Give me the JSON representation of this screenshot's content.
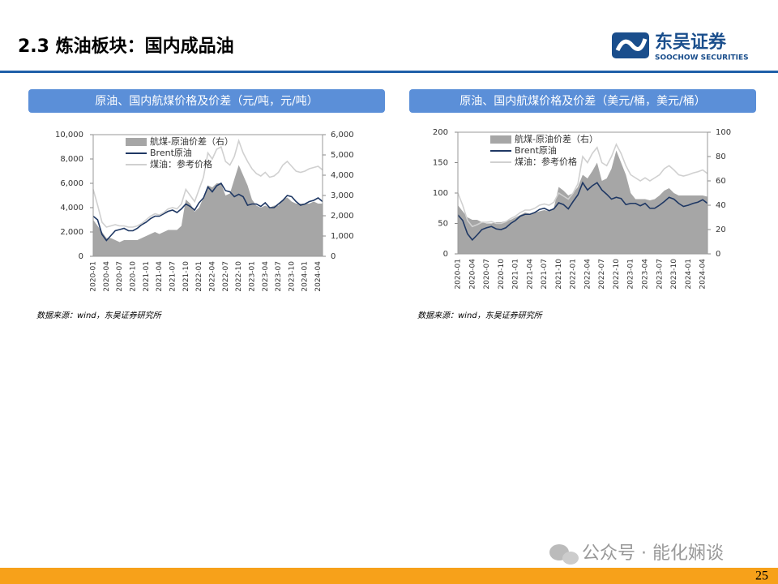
{
  "header": {
    "title": "2.3 炼油板块：国内成品油",
    "logo_name": "东吴证券",
    "logo_subtitle": "SOOCHOW SECURITIES"
  },
  "chart_data": [
    {
      "type": "line",
      "title": "原油、国内航煤价格及价差（元/吨，元/吨）",
      "source": "数据来源：wind，东吴证券研究所",
      "legend": "upper left",
      "categories": [
        "2020-01",
        null,
        null,
        "2020-04",
        null,
        null,
        "2020-07",
        null,
        null,
        "2020-10",
        null,
        null,
        "2021-01",
        null,
        null,
        "2021-04",
        null,
        null,
        "2021-07",
        null,
        null,
        "2021-10",
        null,
        null,
        "2022-01",
        null,
        null,
        "2022-04",
        null,
        null,
        "2022-07",
        null,
        null,
        "2022-10",
        null,
        null,
        "2023-01",
        null,
        null,
        "2023-04",
        null,
        null,
        "2023-07",
        null,
        null,
        "2023-10",
        null,
        null,
        "2024-01",
        null,
        null,
        "2024-04",
        null
      ],
      "series": [
        {
          "name": "航煤-原油价差（右）",
          "color": "#a6a6a6",
          "style": "area",
          "axis": "y2",
          "values": [
            1800,
            1500,
            1200,
            900,
            900,
            800,
            700,
            800,
            800,
            800,
            800,
            900,
            1000,
            1100,
            1200,
            1100,
            1200,
            1300,
            1300,
            1300,
            1500,
            2800,
            2600,
            2200,
            2400,
            2900,
            3500,
            3400,
            3600,
            3600,
            3000,
            3100,
            3800,
            4500,
            4000,
            3500,
            2800,
            2500,
            2400,
            2500,
            2400,
            2500,
            2500,
            2800,
            2900,
            2700,
            2600,
            2600,
            2600,
            2600,
            2700,
            2600,
            2600
          ]
        },
        {
          "name": "Brent原油",
          "color": "#1f3864",
          "values": [
            3300,
            3000,
            1800,
            1300,
            1700,
            2100,
            2200,
            2300,
            2100,
            2100,
            2300,
            2600,
            2800,
            3100,
            3300,
            3300,
            3500,
            3700,
            3800,
            3600,
            3900,
            4300,
            4100,
            3800,
            4400,
            4800,
            5700,
            5300,
            5800,
            6000,
            5400,
            5300,
            4900,
            5100,
            4900,
            4200,
            4300,
            4300,
            4100,
            4400,
            4000,
            4000,
            4300,
            4600,
            5000,
            4900,
            4500,
            4200,
            4300,
            4500,
            4600,
            4800,
            4500
          ]
        },
        {
          "name": "煤油：参考价格",
          "color": "#d0d0d0",
          "values": [
            5500,
            4200,
            2800,
            2400,
            2500,
            2600,
            2500,
            2500,
            2400,
            2400,
            2500,
            2700,
            3000,
            3300,
            3500,
            3400,
            3600,
            3900,
            4000,
            3900,
            4300,
            5500,
            5000,
            4500,
            5500,
            6500,
            8500,
            8000,
            8800,
            9000,
            7800,
            7500,
            8200,
            9500,
            8500,
            7800,
            7200,
            6800,
            6600,
            6900,
            6500,
            6600,
            6900,
            7500,
            7800,
            7400,
            7000,
            6900,
            7000,
            7200,
            7300,
            7400,
            7100
          ]
        }
      ],
      "ylim": [
        0,
        10000
      ],
      "yticks": [
        0,
        {
          "value": 2000,
          "label": "2,000"
        },
        {
          "value": 4000,
          "label": "4,000"
        },
        {
          "value": 6000,
          "label": "6,000"
        },
        {
          "value": 8000,
          "label": "8,000"
        },
        {
          "value": 10000,
          "label": "10,000"
        }
      ],
      "y2lim": [
        0,
        6000
      ],
      "y2ticks": [
        0,
        {
          "value": 1000,
          "label": "1,000"
        },
        {
          "value": 2000,
          "label": "2,000"
        },
        {
          "value": 3000,
          "label": "3,000"
        },
        {
          "value": 4000,
          "label": "4,000"
        },
        {
          "value": 5000,
          "label": "5,000"
        },
        {
          "value": 6000,
          "label": "6,000"
        }
      ]
    },
    {
      "type": "line",
      "title": "原油、国内航煤价格及价差（美元/桶，美元/桶）",
      "source": "数据来源：wind，东吴证券研究所",
      "legend": "upper left",
      "categories": [
        "2020-01",
        null,
        null,
        "2020-04",
        null,
        null,
        "2020-07",
        null,
        null,
        "2020-10",
        null,
        null,
        "2021-01",
        null,
        null,
        "2021-04",
        null,
        null,
        "2021-07",
        null,
        null,
        "2021-10",
        null,
        null,
        "2022-01",
        null,
        null,
        "2022-04",
        null,
        null,
        "2022-07",
        null,
        null,
        "2022-10",
        null,
        null,
        "2023-01",
        null,
        null,
        "2023-04",
        null,
        null,
        "2023-07",
        null,
        null,
        "2023-10",
        null,
        null,
        "2024-01",
        null,
        null,
        "2024-04",
        null
      ],
      "series": [
        {
          "name": "航煤-原油价差（右）",
          "color": "#a6a6a6",
          "style": "area",
          "axis": "y2",
          "values": [
            40,
            35,
            30,
            28,
            28,
            26,
            25,
            25,
            26,
            26,
            27,
            28,
            30,
            32,
            34,
            33,
            34,
            35,
            36,
            35,
            38,
            55,
            52,
            48,
            50,
            55,
            65,
            62,
            68,
            75,
            60,
            62,
            70,
            85,
            75,
            65,
            50,
            45,
            45,
            45,
            44,
            45,
            48,
            52,
            54,
            50,
            48,
            48,
            48,
            48,
            48,
            48,
            47
          ]
        },
        {
          "name": "Brent原油",
          "color": "#1f3864",
          "values": [
            64,
            55,
            33,
            23,
            31,
            40,
            43,
            45,
            41,
            40,
            43,
            50,
            55,
            62,
            65,
            65,
            68,
            73,
            75,
            71,
            74,
            84,
            81,
            74,
            86,
            97,
            117,
            105,
            112,
            117,
            105,
            98,
            90,
            93,
            91,
            81,
            83,
            83,
            79,
            83,
            75,
            75,
            80,
            86,
            93,
            90,
            83,
            78,
            80,
            83,
            85,
            89,
            83
          ]
        },
        {
          "name": "煤油：参考价格",
          "color": "#d0d0d0",
          "values": [
            100,
            80,
            55,
            45,
            48,
            52,
            52,
            53,
            50,
            50,
            53,
            58,
            62,
            68,
            72,
            72,
            75,
            80,
            82,
            80,
            85,
            100,
            95,
            90,
            100,
            115,
            160,
            150,
            165,
            175,
            150,
            145,
            160,
            180,
            165,
            145,
            130,
            125,
            120,
            125,
            120,
            125,
            130,
            140,
            145,
            138,
            130,
            128,
            130,
            133,
            135,
            138,
            132
          ]
        }
      ],
      "ylim": [
        0,
        200
      ],
      "yticks": [
        0,
        50,
        100,
        150,
        200
      ],
      "y2lim": [
        0,
        100
      ],
      "y2ticks": [
        0,
        20,
        40,
        60,
        80,
        100
      ]
    }
  ],
  "footer": {
    "watermark": "公众号 · 能化娴谈",
    "page": "25"
  }
}
